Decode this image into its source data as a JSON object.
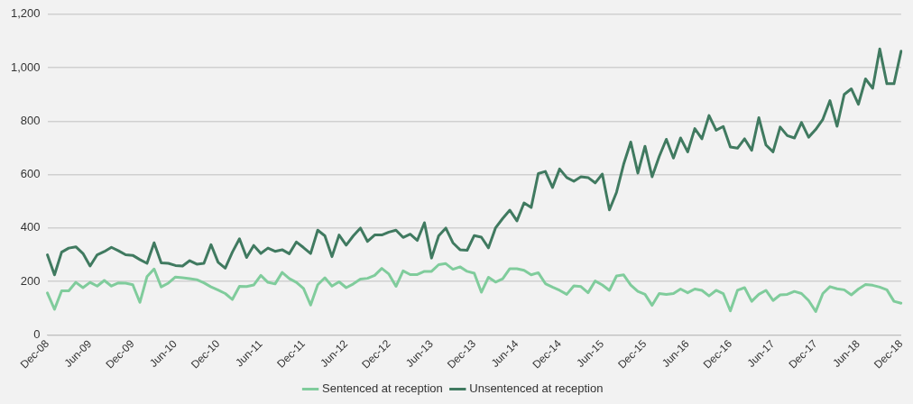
{
  "chart_data": {
    "type": "line",
    "categories": [
      "Dec-08",
      null,
      null,
      null,
      null,
      null,
      "Jun-09",
      null,
      null,
      null,
      null,
      null,
      "Dec-09",
      null,
      null,
      null,
      null,
      null,
      "Jun-10",
      null,
      null,
      null,
      null,
      null,
      "Dec-10",
      null,
      null,
      null,
      null,
      null,
      "Jun-11",
      null,
      null,
      null,
      null,
      null,
      "Dec-11",
      null,
      null,
      null,
      null,
      null,
      "Jun-12",
      null,
      null,
      null,
      null,
      null,
      "Dec-12",
      null,
      null,
      null,
      null,
      null,
      "Jun-13",
      null,
      null,
      null,
      null,
      null,
      "Dec-13",
      null,
      null,
      null,
      null,
      null,
      "Jun-14",
      null,
      null,
      null,
      null,
      null,
      "Dec-14",
      null,
      null,
      null,
      null,
      null,
      "Jun-15",
      null,
      null,
      null,
      null,
      null,
      "Dec-15",
      null,
      null,
      null,
      null,
      null,
      "Jun-16",
      null,
      null,
      null,
      null,
      null,
      "Dec-16",
      null,
      null,
      null,
      null,
      null,
      "Jun-17",
      null,
      null,
      null,
      null,
      null,
      "Dec-17",
      null,
      null,
      null,
      null,
      null,
      "Jun-18",
      null,
      null,
      null,
      null,
      null,
      "Dec-18"
    ],
    "series": [
      {
        "name": "Sentenced at reception",
        "color": "#80cc9c",
        "values": [
          157,
          96,
          165,
          165,
          197,
          177,
          197,
          183,
          204,
          183,
          195,
          194,
          188,
          122,
          218,
          247,
          180,
          194,
          217,
          214,
          211,
          207,
          195,
          180,
          168,
          155,
          133,
          182,
          181,
          187,
          223,
          197,
          191,
          234,
          211,
          197,
          174,
          112,
          188,
          214,
          183,
          199,
          177,
          191,
          209,
          212,
          223,
          249,
          228,
          182,
          240,
          226,
          226,
          238,
          238,
          263,
          267,
          246,
          255,
          238,
          231,
          160,
          216,
          198,
          210,
          248,
          248,
          242,
          225,
          233,
          192,
          179,
          167,
          152,
          184,
          181,
          158,
          202,
          187,
          167,
          221,
          225,
          187,
          163,
          152,
          111,
          155,
          152,
          155,
          172,
          158,
          172,
          167,
          146,
          167,
          155,
          90,
          167,
          177,
          126,
          152,
          167,
          129,
          150,
          152,
          163,
          155,
          129,
          88,
          155,
          181,
          173,
          169,
          150,
          172,
          189,
          186,
          179,
          169,
          126,
          119
        ]
      },
      {
        "name": "Unsentenced at reception",
        "color": "#407a60",
        "values": [
          300,
          225,
          310,
          325,
          330,
          305,
          258,
          300,
          312,
          328,
          315,
          300,
          298,
          282,
          268,
          345,
          270,
          268,
          260,
          258,
          278,
          265,
          268,
          338,
          272,
          250,
          310,
          360,
          290,
          335,
          305,
          325,
          313,
          319,
          304,
          348,
          327,
          305,
          392,
          371,
          293,
          374,
          336,
          371,
          400,
          350,
          374,
          374,
          385,
          392,
          365,
          377,
          354,
          420,
          288,
          371,
          400,
          345,
          319,
          317,
          372,
          366,
          326,
          401,
          436,
          467,
          427,
          494,
          477,
          604,
          612,
          552,
          621,
          589,
          575,
          592,
          589,
          569,
          602,
          468,
          534,
          639,
          722,
          606,
          706,
          592,
          668,
          732,
          662,
          737,
          685,
          772,
          734,
          821,
          766,
          780,
          703,
          699,
          734,
          691,
          813,
          711,
          685,
          778,
          746,
          737,
          795,
          740,
          769,
          807,
          877,
          781,
          900,
          921,
          863,
          958,
          923,
          1070,
          940,
          940,
          1062
        ]
      }
    ],
    "ylim": [
      0,
      1200
    ],
    "yticks": [
      0,
      200,
      400,
      600,
      800,
      {
        "value": 1000,
        "label": "1,000"
      },
      {
        "value": 1200,
        "label": "1,200"
      }
    ],
    "grid": "y",
    "legend": "bottom",
    "marker": "none",
    "line_style": "solid"
  }
}
